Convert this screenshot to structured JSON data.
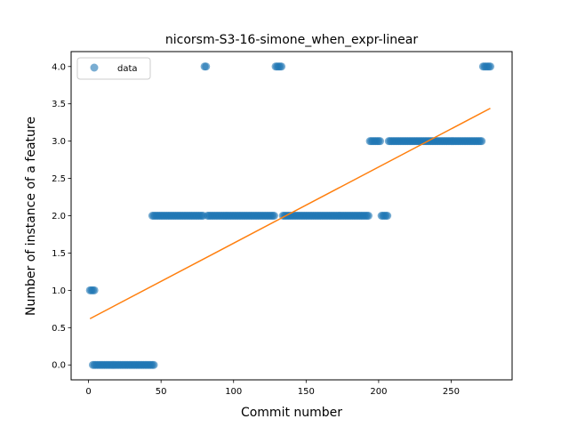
{
  "chart_data": {
    "type": "scatter",
    "title": "nicorsm-S3-16-simone_when_expr-linear",
    "xlabel": "Commit number",
    "ylabel": "Number of instance of a feature",
    "xlim": [
      -12,
      292
    ],
    "ylim": [
      -0.2,
      4.2
    ],
    "xticks": [
      0,
      50,
      100,
      150,
      200,
      250
    ],
    "yticks": [
      0.0,
      0.5,
      1.0,
      1.5,
      2.0,
      2.5,
      3.0,
      3.5,
      4.0
    ],
    "xtick_labels": [
      "0",
      "50",
      "100",
      "150",
      "200",
      "250"
    ],
    "ytick_labels": [
      "0.0",
      "0.5",
      "1.0",
      "1.5",
      "2.0",
      "2.5",
      "3.0",
      "3.5",
      "4.0"
    ],
    "grid": false,
    "legend": {
      "position": "top-left",
      "entries": [
        "data"
      ]
    },
    "colors": {
      "scatter": "#1f77b4",
      "fit_line": "#ff7f0e"
    },
    "series": [
      {
        "name": "data",
        "kind": "scatter",
        "runs": [
          {
            "x_start": 1,
            "x_end": 4,
            "y": 1
          },
          {
            "x_start": 3,
            "x_end": 45,
            "y": 0
          },
          {
            "x_start": 44,
            "x_end": 79,
            "y": 2
          },
          {
            "x_start": 80,
            "x_end": 81,
            "y": 4
          },
          {
            "x_start": 82,
            "x_end": 128,
            "y": 2
          },
          {
            "x_start": 129,
            "x_end": 133,
            "y": 4
          },
          {
            "x_start": 134,
            "x_end": 193,
            "y": 2
          },
          {
            "x_start": 194,
            "x_end": 201,
            "y": 3
          },
          {
            "x_start": 202,
            "x_end": 206,
            "y": 2
          },
          {
            "x_start": 207,
            "x_end": 271,
            "y": 3
          },
          {
            "x_start": 272,
            "x_end": 277,
            "y": 4
          }
        ]
      },
      {
        "kind": "line",
        "x": [
          1,
          277
        ],
        "y": [
          0.62,
          3.44
        ]
      }
    ]
  }
}
